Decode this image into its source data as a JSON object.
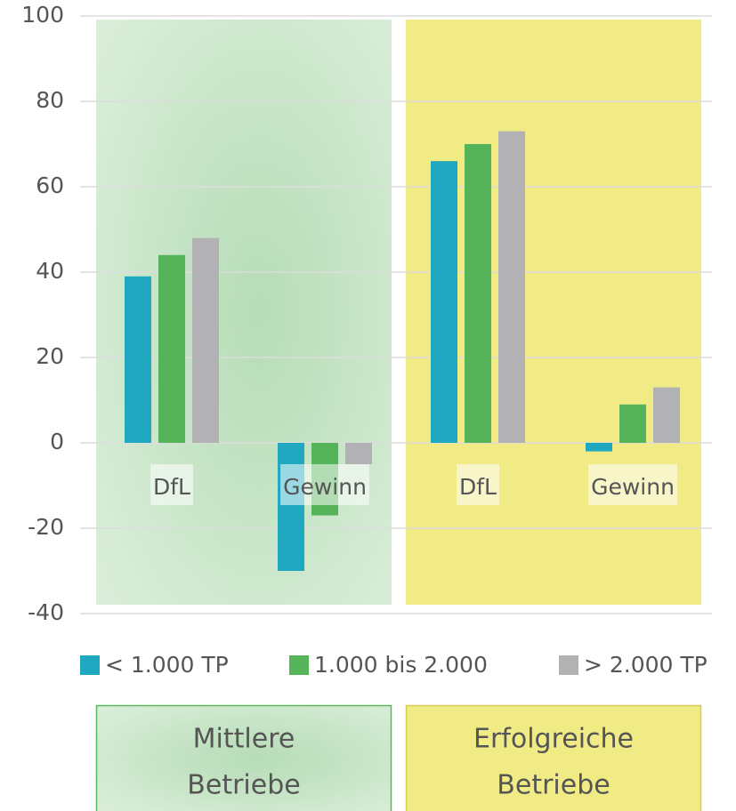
{
  "chart_data": {
    "type": "bar",
    "categories": [
      "DfL",
      "Gewinn",
      "DfL",
      "Gewinn"
    ],
    "series": [
      {
        "name": "< 1.000 TP",
        "color": "#1fa8c0",
        "values": [
          39,
          -30,
          66,
          -2
        ]
      },
      {
        "name": "1.000 bis 2.000",
        "color": "#55b45a",
        "values": [
          44,
          -17,
          70,
          9
        ]
      },
      {
        "name": "> 2.000 TP",
        "color": "#b2b2b4",
        "values": [
          48,
          -5,
          73,
          13
        ]
      }
    ],
    "groups": [
      {
        "lines": [
          "Mittlere",
          "Betriebe"
        ]
      },
      {
        "lines": [
          "Erfolgreiche",
          "Betriebe"
        ]
      }
    ],
    "ylim": [
      -40,
      100
    ],
    "yticks": [
      -40,
      -20,
      0,
      20,
      40,
      60,
      80,
      100
    ],
    "grid": true
  }
}
